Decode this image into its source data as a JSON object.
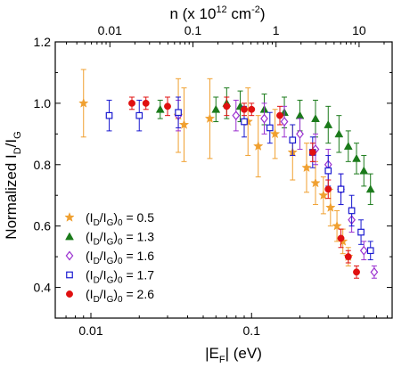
{
  "chart_data": {
    "type": "scatter",
    "x_axis": {
      "label_main": "|E",
      "label_sub": "F",
      "label_tail": "| (eV)",
      "scale": "log",
      "range": [
        0.006,
        0.75
      ],
      "ticks": [
        0.01,
        0.1
      ],
      "tick_labels": [
        "0.01",
        "0.1"
      ]
    },
    "top_axis": {
      "label_main": "n (x 10",
      "label_sup": "12",
      "label_mid": " cm",
      "label_sup2": "-2",
      "label_tail": ")",
      "scale": "log",
      "ticks": [
        0.01,
        0.1,
        1,
        10
      ],
      "tick_labels": [
        "0.01",
        "0.1",
        "1",
        "10"
      ]
    },
    "y_axis": {
      "label_main": "Normalized I",
      "label_sub1": "D",
      "label_mid": "/I",
      "label_sub2": "G",
      "range": [
        0.3,
        1.2
      ],
      "ticks": [
        0.4,
        0.6,
        0.8,
        1.0,
        1.2
      ],
      "tick_labels": [
        "0.4",
        "0.6",
        "0.8",
        "1.0",
        "1.2"
      ]
    },
    "legend_position": "bottom-left",
    "series": [
      {
        "name": "0.5",
        "marker": "star",
        "color": "#f0a030",
        "points": [
          {
            "x": 0.009,
            "y": 1.0,
            "e": 0.11
          },
          {
            "x": 0.035,
            "y": 0.96,
            "e": 0.12
          },
          {
            "x": 0.038,
            "y": 0.93,
            "e": 0.12
          },
          {
            "x": 0.055,
            "y": 0.95,
            "e": 0.13
          },
          {
            "x": 0.095,
            "y": 0.94,
            "e": 0.11
          },
          {
            "x": 0.11,
            "y": 0.86,
            "e": 0.1
          },
          {
            "x": 0.14,
            "y": 0.9,
            "e": 0.08
          },
          {
            "x": 0.18,
            "y": 0.84,
            "e": 0.09
          },
          {
            "x": 0.22,
            "y": 0.79,
            "e": 0.08
          },
          {
            "x": 0.25,
            "y": 0.74,
            "e": 0.07
          },
          {
            "x": 0.28,
            "y": 0.7,
            "e": 0.06
          },
          {
            "x": 0.31,
            "y": 0.66,
            "e": 0.06
          },
          {
            "x": 0.34,
            "y": 0.6,
            "e": 0.05
          },
          {
            "x": 0.37,
            "y": 0.55,
            "e": 0.04
          },
          {
            "x": 0.4,
            "y": 0.5,
            "e": 0.03
          }
        ]
      },
      {
        "name": "1.3",
        "marker": "triangle",
        "color": "#1a7a1a",
        "points": [
          {
            "x": 0.027,
            "y": 0.98,
            "e": 0.03
          },
          {
            "x": 0.06,
            "y": 0.98,
            "e": 0.04
          },
          {
            "x": 0.07,
            "y": 1.0,
            "e": 0.05
          },
          {
            "x": 0.085,
            "y": 0.99,
            "e": 0.05
          },
          {
            "x": 0.12,
            "y": 0.98,
            "e": 0.05
          },
          {
            "x": 0.16,
            "y": 0.97,
            "e": 0.05
          },
          {
            "x": 0.2,
            "y": 0.96,
            "e": 0.05
          },
          {
            "x": 0.25,
            "y": 0.95,
            "e": 0.06
          },
          {
            "x": 0.3,
            "y": 0.93,
            "e": 0.06
          },
          {
            "x": 0.35,
            "y": 0.9,
            "e": 0.06
          },
          {
            "x": 0.4,
            "y": 0.86,
            "e": 0.05
          },
          {
            "x": 0.45,
            "y": 0.82,
            "e": 0.05
          },
          {
            "x": 0.5,
            "y": 0.78,
            "e": 0.05
          },
          {
            "x": 0.55,
            "y": 0.72,
            "e": 0.05
          }
        ]
      },
      {
        "name": "1.6",
        "marker": "diamond",
        "color": "#9a30d0",
        "points": [
          {
            "x": 0.035,
            "y": 0.96,
            "e": 0.05
          },
          {
            "x": 0.08,
            "y": 0.96,
            "e": 0.05
          },
          {
            "x": 0.12,
            "y": 0.95,
            "e": 0.05
          },
          {
            "x": 0.16,
            "y": 0.94,
            "e": 0.05
          },
          {
            "x": 0.2,
            "y": 0.9,
            "e": 0.05
          },
          {
            "x": 0.25,
            "y": 0.85,
            "e": 0.05
          },
          {
            "x": 0.3,
            "y": 0.8,
            "e": 0.05
          },
          {
            "x": 0.36,
            "y": 0.72,
            "e": 0.05
          },
          {
            "x": 0.42,
            "y": 0.62,
            "e": 0.04
          },
          {
            "x": 0.5,
            "y": 0.52,
            "e": 0.03
          },
          {
            "x": 0.58,
            "y": 0.45,
            "e": 0.02
          }
        ]
      },
      {
        "name": "1.7",
        "marker": "square",
        "color": "#1a1ad0",
        "points": [
          {
            "x": 0.013,
            "y": 0.96,
            "e": 0.05
          },
          {
            "x": 0.02,
            "y": 0.96,
            "e": 0.05
          },
          {
            "x": 0.035,
            "y": 0.97,
            "e": 0.05
          },
          {
            "x": 0.09,
            "y": 0.94,
            "e": 0.05
          },
          {
            "x": 0.13,
            "y": 0.92,
            "e": 0.05
          },
          {
            "x": 0.18,
            "y": 0.88,
            "e": 0.05
          },
          {
            "x": 0.24,
            "y": 0.84,
            "e": 0.05
          },
          {
            "x": 0.3,
            "y": 0.78,
            "e": 0.05
          },
          {
            "x": 0.36,
            "y": 0.72,
            "e": 0.05
          },
          {
            "x": 0.42,
            "y": 0.65,
            "e": 0.05
          },
          {
            "x": 0.48,
            "y": 0.58,
            "e": 0.04
          },
          {
            "x": 0.55,
            "y": 0.52,
            "e": 0.03
          }
        ]
      },
      {
        "name": "2.6",
        "marker": "circle",
        "color": "#e01010",
        "points": [
          {
            "x": 0.018,
            "y": 1.0,
            "e": 0.02
          },
          {
            "x": 0.022,
            "y": 1.0,
            "e": 0.02
          },
          {
            "x": 0.03,
            "y": 0.99,
            "e": 0.03
          },
          {
            "x": 0.07,
            "y": 0.99,
            "e": 0.03
          },
          {
            "x": 0.09,
            "y": 0.98,
            "e": 0.02
          },
          {
            "x": 0.1,
            "y": 0.98,
            "e": 0.02
          },
          {
            "x": 0.15,
            "y": 0.96,
            "e": 0.03
          },
          {
            "x": 0.24,
            "y": 0.84,
            "e": 0.03
          },
          {
            "x": 0.3,
            "y": 0.72,
            "e": 0.03
          },
          {
            "x": 0.36,
            "y": 0.56,
            "e": 0.03
          },
          {
            "x": 0.4,
            "y": 0.5,
            "e": 0.02
          },
          {
            "x": 0.45,
            "y": 0.45,
            "e": 0.02
          }
        ]
      }
    ],
    "legend_label_main": "(I",
    "legend_sub1": "D",
    "legend_mid": "/I",
    "legend_sub2": "G",
    "legend_tail": ")",
    "legend_sub3": "0",
    "legend_eq": " = "
  }
}
